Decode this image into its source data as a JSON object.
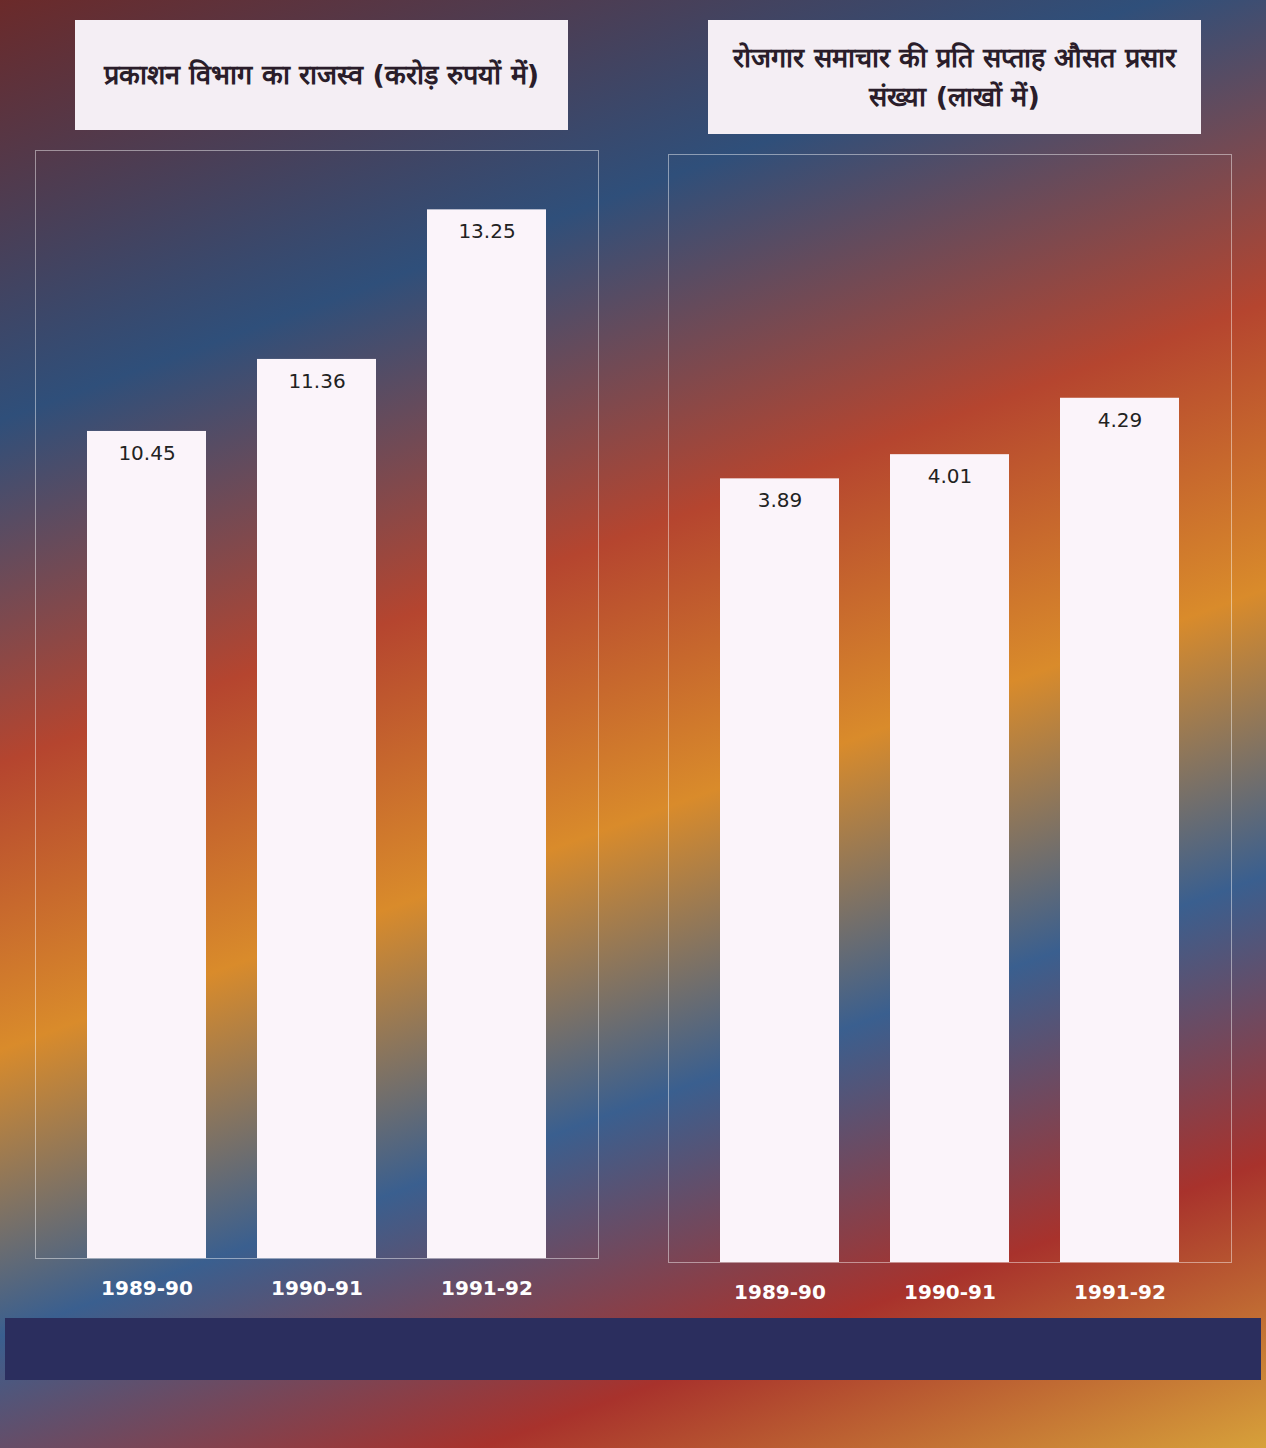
{
  "chart_data": [
    {
      "type": "bar",
      "title": "प्रकाशन विभाग का राजस्व (करोड़ रुपयों में)",
      "categories": [
        "1989-90",
        "1990-91",
        "1991-92"
      ],
      "values": [
        10.45,
        11.36,
        13.25
      ],
      "color": "#fbf4fa",
      "ylim": [
        0,
        14
      ],
      "data_labels": true,
      "tick_labels": "x"
    },
    {
      "type": "bar",
      "title": "रोजगार समाचार की प्रति सप्ताह औसत प्रसार संख्या (लाखों में)",
      "categories": [
        "1989-90",
        "1990-91",
        "1991-92"
      ],
      "values": [
        3.89,
        4.01,
        4.29
      ],
      "color": "#fbf4fa",
      "ylim": [
        0,
        5.5
      ],
      "data_labels": true,
      "tick_labels": "x"
    }
  ]
}
